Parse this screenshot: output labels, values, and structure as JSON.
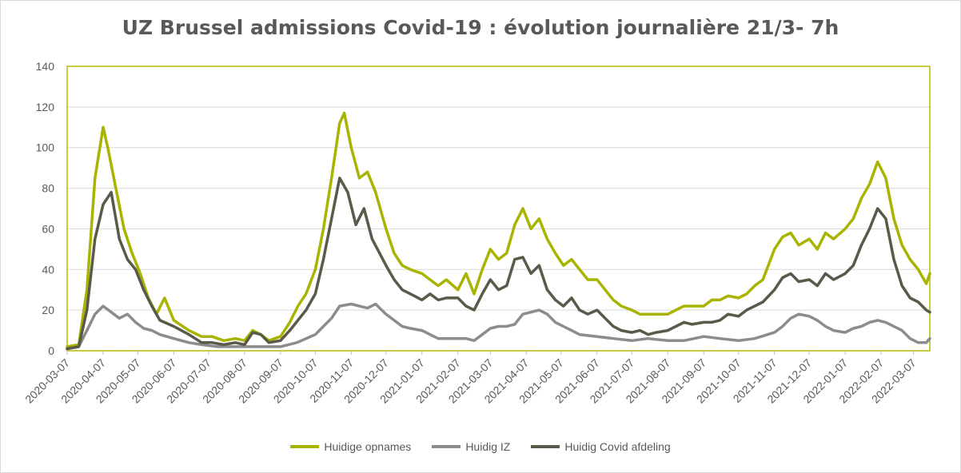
{
  "chart_data": {
    "type": "line",
    "title": "UZ Brussel admissions Covid-19 : évolution journalière 21/3- 7h",
    "xlabel": "",
    "ylabel": "",
    "ylim": [
      0,
      140
    ],
    "yticks": [
      0,
      20,
      40,
      60,
      80,
      100,
      120,
      140
    ],
    "xlim": [
      "2020-03-07",
      "2022-03-21"
    ],
    "x_tick_labels": [
      "2020-03-07",
      "2020-04-07",
      "2020-05-07",
      "2020-06-07",
      "2020-07-07",
      "2020-08-07",
      "2020-09-07",
      "2020-10-07",
      "2020-11-07",
      "2020-12-07",
      "2021-01-07",
      "2021-02-07",
      "2021-03-07",
      "2021-04-07",
      "2021-05-07",
      "2021-06-07",
      "2021-07-07",
      "2021-08-07",
      "2021-09-07",
      "2021-10-07",
      "2021-11-07",
      "2021-12-07",
      "2022-01-07",
      "2022-02-07",
      "2022-03-07"
    ],
    "grid": "horizontal",
    "legend_position": "bottom",
    "plot_border_color": "#b5b800",
    "series": [
      {
        "name": "Huidige opnames",
        "color": "#a8b400",
        "points": [
          [
            "2020-03-07",
            2
          ],
          [
            "2020-03-17",
            3
          ],
          [
            "2020-03-24",
            30
          ],
          [
            "2020-03-31",
            85
          ],
          [
            "2020-04-07",
            110
          ],
          [
            "2020-04-11",
            100
          ],
          [
            "2020-04-18",
            80
          ],
          [
            "2020-04-25",
            60
          ],
          [
            "2020-05-02",
            48
          ],
          [
            "2020-05-09",
            38
          ],
          [
            "2020-05-16",
            26
          ],
          [
            "2020-05-23",
            18
          ],
          [
            "2020-05-30",
            26
          ],
          [
            "2020-06-07",
            15
          ],
          [
            "2020-06-20",
            10
          ],
          [
            "2020-07-01",
            7
          ],
          [
            "2020-07-10",
            7
          ],
          [
            "2020-07-20",
            5
          ],
          [
            "2020-07-30",
            6
          ],
          [
            "2020-08-07",
            5
          ],
          [
            "2020-08-14",
            10
          ],
          [
            "2020-08-21",
            8
          ],
          [
            "2020-08-28",
            5
          ],
          [
            "2020-09-07",
            7
          ],
          [
            "2020-09-15",
            14
          ],
          [
            "2020-09-22",
            22
          ],
          [
            "2020-09-29",
            28
          ],
          [
            "2020-10-07",
            40
          ],
          [
            "2020-10-14",
            60
          ],
          [
            "2020-10-21",
            85
          ],
          [
            "2020-10-28",
            112
          ],
          [
            "2020-11-01",
            117
          ],
          [
            "2020-11-07",
            100
          ],
          [
            "2020-11-14",
            85
          ],
          [
            "2020-11-21",
            88
          ],
          [
            "2020-11-28",
            78
          ],
          [
            "2020-12-07",
            60
          ],
          [
            "2020-12-14",
            48
          ],
          [
            "2020-12-21",
            42
          ],
          [
            "2020-12-28",
            40
          ],
          [
            "2021-01-07",
            38
          ],
          [
            "2021-01-14",
            35
          ],
          [
            "2021-01-21",
            32
          ],
          [
            "2021-01-28",
            35
          ],
          [
            "2021-02-07",
            30
          ],
          [
            "2021-02-14",
            38
          ],
          [
            "2021-02-21",
            28
          ],
          [
            "2021-02-28",
            40
          ],
          [
            "2021-03-07",
            50
          ],
          [
            "2021-03-14",
            45
          ],
          [
            "2021-03-21",
            48
          ],
          [
            "2021-03-28",
            62
          ],
          [
            "2021-04-04",
            70
          ],
          [
            "2021-04-11",
            60
          ],
          [
            "2021-04-18",
            65
          ],
          [
            "2021-04-25",
            55
          ],
          [
            "2021-05-02",
            48
          ],
          [
            "2021-05-09",
            42
          ],
          [
            "2021-05-16",
            45
          ],
          [
            "2021-05-23",
            40
          ],
          [
            "2021-05-30",
            35
          ],
          [
            "2021-06-07",
            35
          ],
          [
            "2021-06-14",
            30
          ],
          [
            "2021-06-21",
            25
          ],
          [
            "2021-06-28",
            22
          ],
          [
            "2021-07-07",
            20
          ],
          [
            "2021-07-14",
            18
          ],
          [
            "2021-07-21",
            18
          ],
          [
            "2021-07-28",
            18
          ],
          [
            "2021-08-07",
            18
          ],
          [
            "2021-08-14",
            20
          ],
          [
            "2021-08-21",
            22
          ],
          [
            "2021-08-28",
            22
          ],
          [
            "2021-09-07",
            22
          ],
          [
            "2021-09-14",
            25
          ],
          [
            "2021-09-21",
            25
          ],
          [
            "2021-09-28",
            27
          ],
          [
            "2021-10-07",
            26
          ],
          [
            "2021-10-14",
            28
          ],
          [
            "2021-10-21",
            32
          ],
          [
            "2021-10-28",
            35
          ],
          [
            "2021-11-07",
            50
          ],
          [
            "2021-11-14",
            56
          ],
          [
            "2021-11-21",
            58
          ],
          [
            "2021-11-28",
            52
          ],
          [
            "2021-12-07",
            55
          ],
          [
            "2021-12-14",
            50
          ],
          [
            "2021-12-21",
            58
          ],
          [
            "2021-12-28",
            55
          ],
          [
            "2022-01-07",
            60
          ],
          [
            "2022-01-14",
            65
          ],
          [
            "2022-01-21",
            75
          ],
          [
            "2022-01-28",
            82
          ],
          [
            "2022-02-04",
            93
          ],
          [
            "2022-02-11",
            85
          ],
          [
            "2022-02-18",
            65
          ],
          [
            "2022-02-25",
            52
          ],
          [
            "2022-03-04",
            45
          ],
          [
            "2022-03-11",
            40
          ],
          [
            "2022-03-18",
            33
          ],
          [
            "2022-03-21",
            38
          ]
        ]
      },
      {
        "name": "Huidig IZ",
        "color": "#8c8c8c",
        "points": [
          [
            "2020-03-07",
            1
          ],
          [
            "2020-03-17",
            2
          ],
          [
            "2020-03-24",
            10
          ],
          [
            "2020-03-31",
            18
          ],
          [
            "2020-04-07",
            22
          ],
          [
            "2020-04-14",
            19
          ],
          [
            "2020-04-21",
            16
          ],
          [
            "2020-04-28",
            18
          ],
          [
            "2020-05-05",
            14
          ],
          [
            "2020-05-12",
            11
          ],
          [
            "2020-05-19",
            10
          ],
          [
            "2020-05-26",
            8
          ],
          [
            "2020-06-07",
            6
          ],
          [
            "2020-06-20",
            4
          ],
          [
            "2020-07-01",
            3
          ],
          [
            "2020-07-15",
            2
          ],
          [
            "2020-07-30",
            2
          ],
          [
            "2020-08-07",
            2
          ],
          [
            "2020-08-21",
            2
          ],
          [
            "2020-09-07",
            2
          ],
          [
            "2020-09-21",
            4
          ],
          [
            "2020-10-07",
            8
          ],
          [
            "2020-10-14",
            12
          ],
          [
            "2020-10-21",
            16
          ],
          [
            "2020-10-28",
            22
          ],
          [
            "2020-11-07",
            23
          ],
          [
            "2020-11-14",
            22
          ],
          [
            "2020-11-21",
            21
          ],
          [
            "2020-11-28",
            23
          ],
          [
            "2020-12-07",
            18
          ],
          [
            "2020-12-14",
            15
          ],
          [
            "2020-12-21",
            12
          ],
          [
            "2020-12-28",
            11
          ],
          [
            "2021-01-07",
            10
          ],
          [
            "2021-01-14",
            8
          ],
          [
            "2021-01-21",
            6
          ],
          [
            "2021-01-28",
            6
          ],
          [
            "2021-02-07",
            6
          ],
          [
            "2021-02-14",
            6
          ],
          [
            "2021-02-21",
            5
          ],
          [
            "2021-02-28",
            8
          ],
          [
            "2021-03-07",
            11
          ],
          [
            "2021-03-14",
            12
          ],
          [
            "2021-03-21",
            12
          ],
          [
            "2021-03-28",
            13
          ],
          [
            "2021-04-04",
            18
          ],
          [
            "2021-04-11",
            19
          ],
          [
            "2021-04-18",
            20
          ],
          [
            "2021-04-25",
            18
          ],
          [
            "2021-05-02",
            14
          ],
          [
            "2021-05-09",
            12
          ],
          [
            "2021-05-16",
            10
          ],
          [
            "2021-05-23",
            8
          ],
          [
            "2021-06-07",
            7
          ],
          [
            "2021-06-21",
            6
          ],
          [
            "2021-07-07",
            5
          ],
          [
            "2021-07-21",
            6
          ],
          [
            "2021-08-07",
            5
          ],
          [
            "2021-08-21",
            5
          ],
          [
            "2021-09-07",
            7
          ],
          [
            "2021-09-21",
            6
          ],
          [
            "2021-10-07",
            5
          ],
          [
            "2021-10-21",
            6
          ],
          [
            "2021-11-07",
            9
          ],
          [
            "2021-11-14",
            12
          ],
          [
            "2021-11-21",
            16
          ],
          [
            "2021-11-28",
            18
          ],
          [
            "2021-12-07",
            17
          ],
          [
            "2021-12-14",
            15
          ],
          [
            "2021-12-21",
            12
          ],
          [
            "2021-12-28",
            10
          ],
          [
            "2022-01-07",
            9
          ],
          [
            "2022-01-14",
            11
          ],
          [
            "2022-01-21",
            12
          ],
          [
            "2022-01-28",
            14
          ],
          [
            "2022-02-04",
            15
          ],
          [
            "2022-02-11",
            14
          ],
          [
            "2022-02-18",
            12
          ],
          [
            "2022-02-25",
            10
          ],
          [
            "2022-03-04",
            6
          ],
          [
            "2022-03-11",
            4
          ],
          [
            "2022-03-18",
            4
          ],
          [
            "2022-03-21",
            6
          ]
        ]
      },
      {
        "name": "Huidig Covid afdeling",
        "color": "#595a4a",
        "points": [
          [
            "2020-03-07",
            1
          ],
          [
            "2020-03-17",
            2
          ],
          [
            "2020-03-24",
            20
          ],
          [
            "2020-03-31",
            55
          ],
          [
            "2020-04-07",
            72
          ],
          [
            "2020-04-14",
            78
          ],
          [
            "2020-04-21",
            55
          ],
          [
            "2020-04-28",
            45
          ],
          [
            "2020-05-05",
            40
          ],
          [
            "2020-05-12",
            30
          ],
          [
            "2020-05-19",
            22
          ],
          [
            "2020-05-26",
            15
          ],
          [
            "2020-06-07",
            12
          ],
          [
            "2020-06-20",
            8
          ],
          [
            "2020-07-01",
            4
          ],
          [
            "2020-07-10",
            4
          ],
          [
            "2020-07-20",
            3
          ],
          [
            "2020-07-30",
            4
          ],
          [
            "2020-08-07",
            3
          ],
          [
            "2020-08-14",
            9
          ],
          [
            "2020-08-21",
            8
          ],
          [
            "2020-08-28",
            4
          ],
          [
            "2020-09-07",
            5
          ],
          [
            "2020-09-15",
            10
          ],
          [
            "2020-09-22",
            15
          ],
          [
            "2020-09-29",
            20
          ],
          [
            "2020-10-07",
            28
          ],
          [
            "2020-10-14",
            45
          ],
          [
            "2020-10-21",
            65
          ],
          [
            "2020-10-28",
            85
          ],
          [
            "2020-11-04",
            78
          ],
          [
            "2020-11-11",
            62
          ],
          [
            "2020-11-18",
            70
          ],
          [
            "2020-11-25",
            55
          ],
          [
            "2020-12-07",
            42
          ],
          [
            "2020-12-14",
            35
          ],
          [
            "2020-12-21",
            30
          ],
          [
            "2020-12-28",
            28
          ],
          [
            "2021-01-07",
            25
          ],
          [
            "2021-01-14",
            28
          ],
          [
            "2021-01-21",
            25
          ],
          [
            "2021-01-28",
            26
          ],
          [
            "2021-02-07",
            26
          ],
          [
            "2021-02-14",
            22
          ],
          [
            "2021-02-21",
            20
          ],
          [
            "2021-02-28",
            28
          ],
          [
            "2021-03-07",
            35
          ],
          [
            "2021-03-14",
            30
          ],
          [
            "2021-03-21",
            32
          ],
          [
            "2021-03-28",
            45
          ],
          [
            "2021-04-04",
            46
          ],
          [
            "2021-04-11",
            38
          ],
          [
            "2021-04-18",
            42
          ],
          [
            "2021-04-25",
            30
          ],
          [
            "2021-05-02",
            25
          ],
          [
            "2021-05-09",
            22
          ],
          [
            "2021-05-16",
            26
          ],
          [
            "2021-05-23",
            20
          ],
          [
            "2021-05-30",
            18
          ],
          [
            "2021-06-07",
            20
          ],
          [
            "2021-06-14",
            16
          ],
          [
            "2021-06-21",
            12
          ],
          [
            "2021-06-28",
            10
          ],
          [
            "2021-07-07",
            9
          ],
          [
            "2021-07-14",
            10
          ],
          [
            "2021-07-21",
            8
          ],
          [
            "2021-07-28",
            9
          ],
          [
            "2021-08-07",
            10
          ],
          [
            "2021-08-14",
            12
          ],
          [
            "2021-08-21",
            14
          ],
          [
            "2021-08-28",
            13
          ],
          [
            "2021-09-07",
            14
          ],
          [
            "2021-09-14",
            14
          ],
          [
            "2021-09-21",
            15
          ],
          [
            "2021-09-28",
            18
          ],
          [
            "2021-10-07",
            17
          ],
          [
            "2021-10-14",
            20
          ],
          [
            "2021-10-21",
            22
          ],
          [
            "2021-10-28",
            24
          ],
          [
            "2021-11-07",
            30
          ],
          [
            "2021-11-14",
            36
          ],
          [
            "2021-11-21",
            38
          ],
          [
            "2021-11-28",
            34
          ],
          [
            "2021-12-07",
            35
          ],
          [
            "2021-12-14",
            32
          ],
          [
            "2021-12-21",
            38
          ],
          [
            "2021-12-28",
            35
          ],
          [
            "2022-01-07",
            38
          ],
          [
            "2022-01-14",
            42
          ],
          [
            "2022-01-21",
            52
          ],
          [
            "2022-01-28",
            60
          ],
          [
            "2022-02-04",
            70
          ],
          [
            "2022-02-11",
            65
          ],
          [
            "2022-02-18",
            45
          ],
          [
            "2022-02-25",
            32
          ],
          [
            "2022-03-04",
            26
          ],
          [
            "2022-03-11",
            24
          ],
          [
            "2022-03-18",
            20
          ],
          [
            "2022-03-21",
            19
          ]
        ]
      }
    ]
  }
}
